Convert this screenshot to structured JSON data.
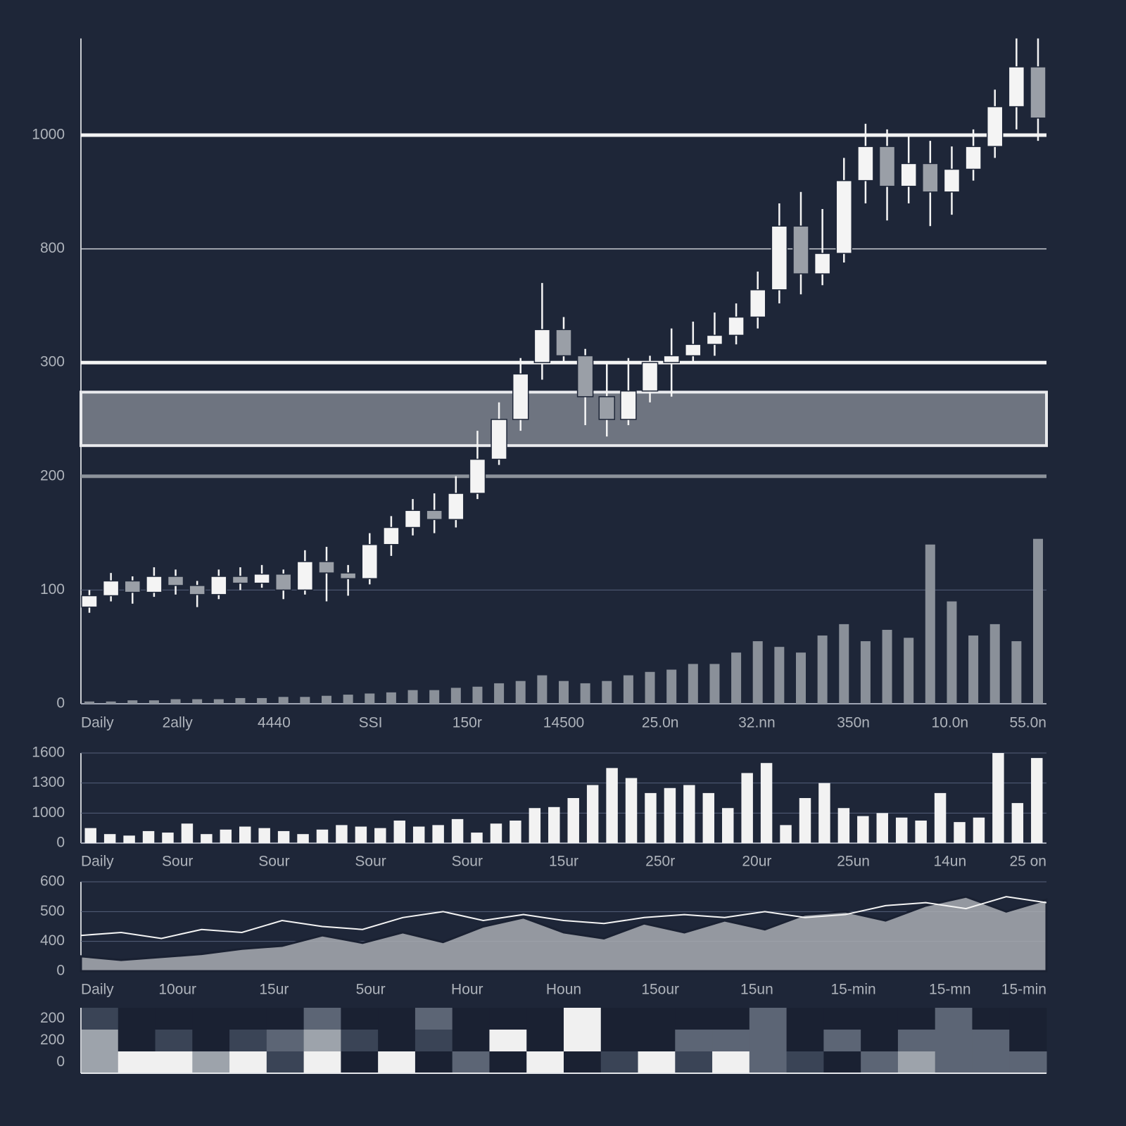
{
  "chart_data": [
    {
      "type": "candlestick",
      "yticks": [
        0,
        100,
        200,
        300,
        800,
        1000
      ],
      "ylim": [
        0,
        1170
      ],
      "x_labels": [
        "Daily",
        "2ally",
        "4440",
        "SSI",
        "150r",
        "14500",
        "25.0n",
        "32.nn",
        "350n",
        "10.0n",
        "55.0n"
      ],
      "open": [
        85,
        95,
        108,
        98,
        112,
        104,
        96,
        112,
        106,
        114,
        100,
        125,
        115,
        110,
        140,
        155,
        170,
        162,
        185,
        215,
        250,
        300,
        445,
        330,
        270,
        250,
        275,
        300,
        330,
        380,
        420,
        500,
        620,
        840,
        690,
        780,
        920,
        980,
        910,
        950,
        900,
        940,
        980,
        1050,
        1120
      ],
      "close": [
        95,
        108,
        98,
        112,
        104,
        96,
        112,
        106,
        114,
        100,
        125,
        115,
        110,
        140,
        155,
        170,
        162,
        185,
        215,
        250,
        290,
        445,
        330,
        270,
        250,
        275,
        300,
        330,
        380,
        420,
        500,
        620,
        840,
        690,
        780,
        920,
        980,
        910,
        950,
        900,
        940,
        980,
        1050,
        1120,
        1030
      ],
      "high": [
        100,
        115,
        112,
        120,
        118,
        108,
        118,
        120,
        122,
        118,
        135,
        138,
        122,
        150,
        165,
        180,
        185,
        200,
        240,
        265,
        320,
        650,
        500,
        360,
        300,
        320,
        330,
        450,
        480,
        520,
        560,
        700,
        880,
        900,
        870,
        960,
        1020,
        1010,
        1000,
        990,
        980,
        1010,
        1080,
        1170,
        1170
      ],
      "low": [
        80,
        90,
        88,
        94,
        96,
        85,
        92,
        100,
        102,
        92,
        96,
        90,
        95,
        105,
        130,
        148,
        150,
        155,
        180,
        210,
        240,
        285,
        300,
        245,
        235,
        245,
        265,
        270,
        300,
        330,
        380,
        450,
        560,
        600,
        640,
        740,
        880,
        850,
        880,
        840,
        860,
        920,
        960,
        1010,
        990
      ],
      "up_color": "#f4f4f4",
      "down_color": "#9a9fa7",
      "volume": [
        2,
        2,
        3,
        3,
        4,
        4,
        4,
        5,
        5,
        6,
        6,
        7,
        8,
        9,
        10,
        12,
        12,
        14,
        15,
        18,
        20,
        25,
        20,
        18,
        20,
        25,
        28,
        30,
        35,
        35,
        45,
        55,
        50,
        45,
        60,
        70,
        55,
        65,
        58,
        140,
        90,
        60,
        70,
        55,
        145
      ],
      "volume_color": "#8a9099",
      "levels": [
        1000,
        800,
        300,
        200
      ],
      "level_colors": [
        "#f4f4f4",
        "#c9ccd1",
        "#f4f4f4",
        "#8c929a"
      ],
      "zone": [
        227,
        274
      ],
      "zone_color": "#6e7480"
    },
    {
      "type": "bar",
      "yticks": [
        0,
        1000,
        1300,
        1600
      ],
      "ylim": [
        0,
        1600
      ],
      "x_labels": [
        "Daily",
        "Sour",
        "Sour",
        "Sour",
        "Sour",
        "15ur",
        "250r",
        "20ur",
        "25un",
        "14un",
        "25 on"
      ],
      "values": [
        500,
        300,
        250,
        400,
        350,
        650,
        300,
        450,
        550,
        500,
        400,
        300,
        450,
        600,
        550,
        500,
        750,
        550,
        600,
        800,
        350,
        650,
        750,
        1050,
        1060,
        1150,
        1280,
        1450,
        1350,
        1200,
        1250,
        1280,
        1200,
        1050,
        1400,
        1500,
        600,
        1150,
        1300,
        1050,
        900,
        1000,
        850,
        750,
        1200,
        700,
        850,
        1600,
        1100,
        1550
      ],
      "color": "#f2f2f2"
    },
    {
      "type": "area",
      "yticks": [
        0,
        400,
        500,
        600
      ],
      "ylim": [
        0,
        600
      ],
      "x_labels": [
        "Daily",
        "10our",
        "15ur",
        "5our",
        "Hour",
        "Houn",
        "15our",
        "15un",
        "15-min",
        "15-mn",
        "15-min"
      ],
      "series": [
        {
          "color": "#a9adb3",
          "values": [
            200,
            150,
            190,
            230,
            300,
            340,
            420,
            380,
            430,
            390,
            450,
            480,
            430,
            410,
            460,
            430,
            470,
            440,
            490,
            500,
            470,
            520,
            550,
            500,
            540
          ]
        },
        {
          "color": "#f4f4f4",
          "values": [
            420,
            430,
            410,
            440,
            430,
            470,
            450,
            440,
            480,
            500,
            470,
            490,
            470,
            460,
            480,
            490,
            480,
            500,
            480,
            490,
            520,
            530,
            510,
            550,
            530
          ]
        }
      ]
    },
    {
      "type": "heatmap",
      "ytick_labels": [
        "200",
        "200",
        "0"
      ],
      "colors": [
        "#1a2132",
        "#3a4456",
        "#5c6575",
        "#9da3ab",
        "#f0f0f0"
      ],
      "matrix": [
        [
          1,
          0,
          0,
          0,
          0,
          0,
          2,
          0,
          0,
          2,
          0,
          0,
          0,
          4,
          0,
          0,
          0,
          0,
          2,
          0,
          0,
          0,
          0,
          2,
          0,
          0
        ],
        [
          3,
          0,
          1,
          0,
          1,
          2,
          3,
          1,
          0,
          1,
          0,
          4,
          0,
          4,
          0,
          0,
          2,
          2,
          2,
          0,
          2,
          0,
          2,
          2,
          2,
          0
        ],
        [
          3,
          4,
          4,
          3,
          4,
          1,
          4,
          0,
          4,
          0,
          2,
          0,
          4,
          0,
          1,
          4,
          1,
          4,
          2,
          1,
          0,
          2,
          3,
          2,
          2,
          2
        ]
      ]
    }
  ]
}
